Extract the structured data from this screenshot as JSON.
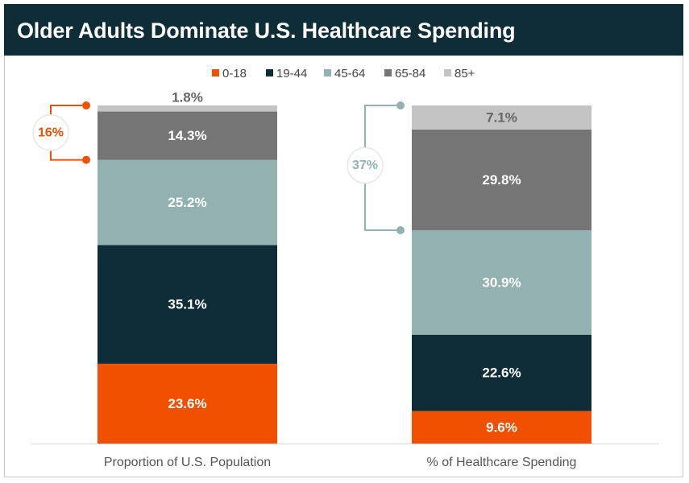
{
  "title": "Older Adults Dominate U.S. Healthcare Spending",
  "colors": {
    "header_bg": "#0e2d36",
    "0-18": "#f05000",
    "19-44": "#0e2d36",
    "45-64": "#93b1b0",
    "65-84": "#757575",
    "85+": "#c4c4c4",
    "bracket_left": "#f05000",
    "bracket_right": "#93b1b0"
  },
  "chart_data": {
    "type": "bar",
    "stacked": true,
    "categories": [
      "Proportion of U.S. Population",
      "% of Healthcare Spending"
    ],
    "series": [
      {
        "name": "0-18",
        "values": [
          23.6,
          9.6
        ],
        "labels": [
          "23.6%",
          "9.6%"
        ]
      },
      {
        "name": "19-44",
        "values": [
          35.1,
          22.6
        ],
        "labels": [
          "35.1%",
          "22.6%"
        ]
      },
      {
        "name": "45-64",
        "values": [
          25.2,
          30.9
        ],
        "labels": [
          "25.2%",
          "30.9%"
        ]
      },
      {
        "name": "65-84",
        "values": [
          14.3,
          29.8
        ],
        "labels": [
          "14.3%",
          "29.8%"
        ]
      },
      {
        "name": "85+",
        "values": [
          1.8,
          7.1
        ],
        "labels": [
          "1.8%",
          "7.1%"
        ]
      }
    ],
    "ylim": [
      0,
      100
    ],
    "legend_position": "top",
    "annotations": [
      {
        "category_index": 0,
        "label": "16%",
        "spans_series": [
          "65-84",
          "85+"
        ]
      },
      {
        "category_index": 1,
        "label": "37%",
        "spans_series": [
          "65-84",
          "85+"
        ]
      }
    ]
  }
}
